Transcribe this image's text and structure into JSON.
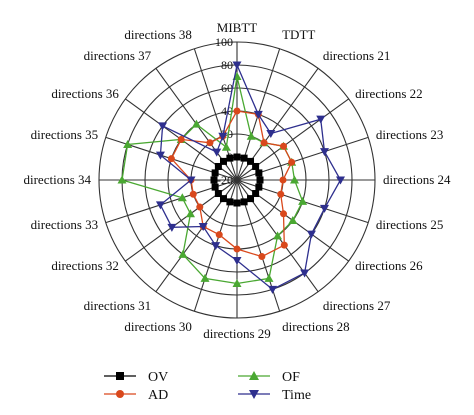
{
  "chart_data": {
    "type": "radar",
    "categories": [
      "MIBTT",
      "TDTT",
      "directions 21",
      "directions 22",
      "directions 23",
      "directions 24",
      "directions 25",
      "directions 26",
      "directions 27",
      "directions 28",
      "directions 29",
      "directions 30",
      "directions 31",
      "directions 32",
      "directions 33",
      "directions 34",
      "directions 35",
      "directions 36",
      "directions 37",
      "directions 38"
    ],
    "r_ticks": [
      -20,
      0,
      20,
      40,
      60,
      80,
      100
    ],
    "r_range": [
      -20,
      100
    ],
    "grid": true,
    "legend_position": "bottom",
    "series": [
      {
        "name": "OV",
        "color": "#000000",
        "marker": "square",
        "values": [
          0,
          0,
          0,
          0,
          0,
          0,
          0,
          0,
          0,
          0,
          0,
          0,
          0,
          0,
          0,
          0,
          0,
          0,
          0,
          0
        ]
      },
      {
        "name": "OF",
        "color": "#4aa832",
        "marker": "triangle-up",
        "values": [
          70,
          20,
          20,
          30,
          30,
          30,
          40,
          40,
          40,
          70,
          70,
          70,
          60,
          30,
          30,
          80,
          80,
          40,
          40,
          10
        ]
      },
      {
        "name": "AD",
        "color": "#d9481c",
        "marker": "circle",
        "values": [
          40,
          40,
          20,
          30,
          30,
          20,
          20,
          30,
          50,
          50,
          40,
          30,
          30,
          20,
          20,
          20,
          40,
          40,
          20,
          20
        ]
      },
      {
        "name": "Time",
        "color": "#2e2f8e",
        "marker": "triangle-down",
        "values": [
          80,
          40,
          30,
          70,
          60,
          70,
          60,
          60,
          80,
          80,
          50,
          40,
          30,
          50,
          50,
          20,
          50,
          60,
          10,
          20
        ]
      }
    ]
  },
  "legend": {
    "ov": "OV",
    "ad": "AD",
    "of": "OF",
    "time": "Time"
  }
}
